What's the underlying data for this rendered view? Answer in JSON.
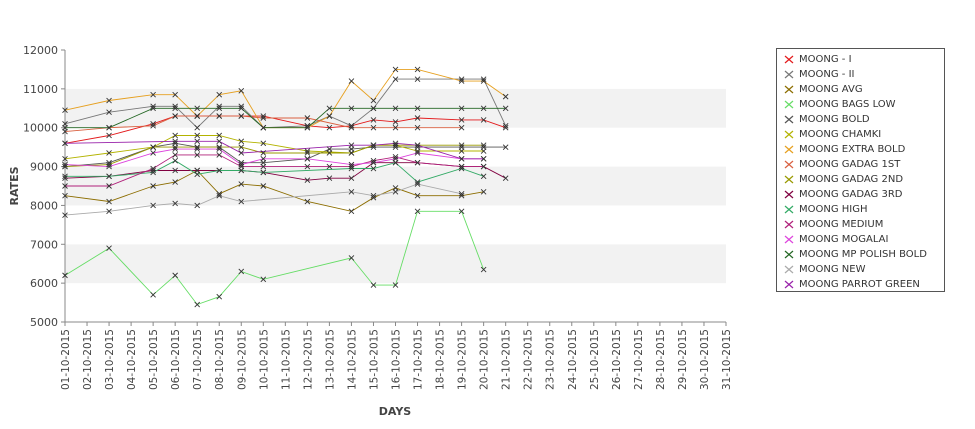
{
  "chart_data": {
    "type": "line",
    "title": "",
    "xlabel": "DAYS",
    "ylabel": "RATES",
    "ylim": [
      5000,
      12000
    ],
    "yticks": [
      5000,
      6000,
      7000,
      8000,
      9000,
      10000,
      11000,
      12000
    ],
    "grid": "alternating horizontal bands",
    "legend_position": "right",
    "categories": [
      "01-10-2015",
      "02-10-2015",
      "03-10-2015",
      "04-10-2015",
      "05-10-2015",
      "06-10-2015",
      "07-10-2015",
      "08-10-2015",
      "09-10-2015",
      "10-10-2015",
      "11-10-2015",
      "12-10-2015",
      "13-10-2015",
      "14-10-2015",
      "15-10-2015",
      "16-10-2015",
      "17-10-2015",
      "18-10-2015",
      "19-10-2015",
      "20-10-2015",
      "21-10-2015",
      "22-10-2015",
      "23-10-2015",
      "24-10-2015",
      "25-10-2015",
      "26-10-2015",
      "27-10-2015",
      "28-10-2015",
      "29-10-2015",
      "30-10-2015",
      "31-10-2015"
    ],
    "series": [
      {
        "name": "MOONG - I",
        "color": "#e31a1c",
        "points": [
          [
            "01-10-2015",
            9600
          ],
          [
            "03-10-2015",
            9800
          ],
          [
            "05-10-2015",
            10100
          ],
          [
            "06-10-2015",
            10300
          ],
          [
            "07-10-2015",
            10300
          ],
          [
            "08-10-2015",
            10300
          ],
          [
            "09-10-2015",
            10300
          ],
          [
            "10-10-2015",
            10300
          ],
          [
            "12-10-2015",
            10050
          ],
          [
            "13-10-2015",
            10000
          ],
          [
            "14-10-2015",
            10050
          ],
          [
            "15-10-2015",
            10200
          ],
          [
            "16-10-2015",
            10150
          ],
          [
            "17-10-2015",
            10250
          ],
          [
            "19-10-2015",
            10200
          ],
          [
            "20-10-2015",
            10200
          ],
          [
            "21-10-2015",
            10000
          ]
        ]
      },
      {
        "name": "MOONG - II",
        "color": "#777777",
        "points": [
          [
            "01-10-2015",
            10100
          ],
          [
            "03-10-2015",
            10400
          ],
          [
            "05-10-2015",
            10550
          ],
          [
            "06-10-2015",
            10550
          ],
          [
            "07-10-2015",
            10000
          ],
          [
            "08-10-2015",
            10550
          ],
          [
            "09-10-2015",
            10550
          ],
          [
            "10-10-2015",
            10000
          ],
          [
            "12-10-2015",
            10050
          ],
          [
            "13-10-2015",
            10300
          ],
          [
            "14-10-2015",
            10050
          ],
          [
            "15-10-2015",
            10500
          ],
          [
            "16-10-2015",
            11250
          ],
          [
            "17-10-2015",
            11250
          ],
          [
            "19-10-2015",
            11250
          ],
          [
            "20-10-2015",
            11250
          ],
          [
            "21-10-2015",
            10050
          ]
        ]
      },
      {
        "name": "MOONG AVG",
        "color": "#8c6d00",
        "points": [
          [
            "01-10-2015",
            8250
          ],
          [
            "03-10-2015",
            8100
          ],
          [
            "05-10-2015",
            8500
          ],
          [
            "06-10-2015",
            8600
          ],
          [
            "07-10-2015",
            8900
          ],
          [
            "08-10-2015",
            8300
          ],
          [
            "09-10-2015",
            8550
          ],
          [
            "10-10-2015",
            8500
          ],
          [
            "12-10-2015",
            8100
          ],
          [
            "14-10-2015",
            7850
          ],
          [
            "15-10-2015",
            8200
          ],
          [
            "16-10-2015",
            8450
          ],
          [
            "17-10-2015",
            8250
          ],
          [
            "19-10-2015",
            8250
          ],
          [
            "20-10-2015",
            8350
          ]
        ]
      },
      {
        "name": "MOONG BAGS LOW",
        "color": "#66dd66",
        "points": [
          [
            "01-10-2015",
            6200
          ],
          [
            "03-10-2015",
            6900
          ],
          [
            "05-10-2015",
            5700
          ],
          [
            "06-10-2015",
            6200
          ],
          [
            "07-10-2015",
            5450
          ],
          [
            "08-10-2015",
            5650
          ],
          [
            "09-10-2015",
            6300
          ],
          [
            "10-10-2015",
            6100
          ],
          [
            "14-10-2015",
            6650
          ],
          [
            "15-10-2015",
            5950
          ],
          [
            "16-10-2015",
            5950
          ],
          [
            "17-10-2015",
            7850
          ],
          [
            "19-10-2015",
            7850
          ],
          [
            "20-10-2015",
            6350
          ]
        ]
      },
      {
        "name": "MOONG BOLD",
        "color": "#555555",
        "points": [
          [
            "01-10-2015",
            9000
          ],
          [
            "03-10-2015",
            9100
          ],
          [
            "05-10-2015",
            9500
          ],
          [
            "06-10-2015",
            9600
          ],
          [
            "07-10-2015",
            9500
          ],
          [
            "08-10-2015",
            9500
          ],
          [
            "09-10-2015",
            9100
          ],
          [
            "10-10-2015",
            9100
          ],
          [
            "12-10-2015",
            9200
          ],
          [
            "13-10-2015",
            9450
          ],
          [
            "14-10-2015",
            9450
          ],
          [
            "15-10-2015",
            9500
          ],
          [
            "16-10-2015",
            9500
          ],
          [
            "17-10-2015",
            9500
          ],
          [
            "19-10-2015",
            9500
          ],
          [
            "20-10-2015",
            9500
          ],
          [
            "21-10-2015",
            9500
          ]
        ]
      },
      {
        "name": "MOONG CHAMKI",
        "color": "#b3b300",
        "points": [
          [
            "01-10-2015",
            9200
          ],
          [
            "03-10-2015",
            9350
          ],
          [
            "05-10-2015",
            9500
          ],
          [
            "06-10-2015",
            9800
          ],
          [
            "07-10-2015",
            9800
          ],
          [
            "08-10-2015",
            9800
          ],
          [
            "09-10-2015",
            9650
          ],
          [
            "10-10-2015",
            9600
          ],
          [
            "12-10-2015",
            9400
          ],
          [
            "14-10-2015",
            9350
          ],
          [
            "15-10-2015",
            9550
          ],
          [
            "16-10-2015",
            9550
          ],
          [
            "17-10-2015",
            9400
          ],
          [
            "19-10-2015",
            9400
          ],
          [
            "20-10-2015",
            9400
          ]
        ]
      },
      {
        "name": "MOONG EXTRA BOLD",
        "color": "#e6a020",
        "points": [
          [
            "01-10-2015",
            10450
          ],
          [
            "03-10-2015",
            10700
          ],
          [
            "05-10-2015",
            10850
          ],
          [
            "06-10-2015",
            10850
          ],
          [
            "07-10-2015",
            10300
          ],
          [
            "08-10-2015",
            10850
          ],
          [
            "09-10-2015",
            10950
          ],
          [
            "10-10-2015",
            10000
          ],
          [
            "12-10-2015",
            10000
          ],
          [
            "13-10-2015",
            10300
          ],
          [
            "14-10-2015",
            11200
          ],
          [
            "15-10-2015",
            10700
          ],
          [
            "16-10-2015",
            11500
          ],
          [
            "17-10-2015",
            11500
          ],
          [
            "19-10-2015",
            11200
          ],
          [
            "20-10-2015",
            11200
          ],
          [
            "21-10-2015",
            10800
          ]
        ]
      },
      {
        "name": "MOONG GADAG 1ST",
        "color": "#d96040",
        "points": [
          [
            "01-10-2015",
            9900
          ],
          [
            "03-10-2015",
            10000
          ],
          [
            "05-10-2015",
            10050
          ],
          [
            "06-10-2015",
            10300
          ],
          [
            "07-10-2015",
            10300
          ],
          [
            "08-10-2015",
            10300
          ],
          [
            "09-10-2015",
            10300
          ],
          [
            "10-10-2015",
            10250
          ],
          [
            "12-10-2015",
            10250
          ],
          [
            "14-10-2015",
            10000
          ],
          [
            "15-10-2015",
            10000
          ],
          [
            "16-10-2015",
            10000
          ],
          [
            "17-10-2015",
            10000
          ],
          [
            "19-10-2015",
            10000
          ]
        ]
      },
      {
        "name": "MOONG GADAG 2ND",
        "color": "#999900",
        "points": [
          [
            "01-10-2015",
            9000
          ],
          [
            "03-10-2015",
            9050
          ],
          [
            "05-10-2015",
            9500
          ],
          [
            "06-10-2015",
            9500
          ],
          [
            "07-10-2015",
            9500
          ],
          [
            "08-10-2015",
            9500
          ],
          [
            "09-10-2015",
            9500
          ],
          [
            "10-10-2015",
            9350
          ],
          [
            "12-10-2015",
            9350
          ],
          [
            "13-10-2015",
            9350
          ],
          [
            "14-10-2015",
            9350
          ],
          [
            "15-10-2015",
            9550
          ],
          [
            "16-10-2015",
            9550
          ],
          [
            "17-10-2015",
            9550
          ],
          [
            "19-10-2015",
            9550
          ],
          [
            "20-10-2015",
            9550
          ]
        ]
      },
      {
        "name": "MOONG GADAG 3RD",
        "color": "#800040",
        "points": [
          [
            "01-10-2015",
            8700
          ],
          [
            "03-10-2015",
            8750
          ],
          [
            "05-10-2015",
            8900
          ],
          [
            "06-10-2015",
            8900
          ],
          [
            "07-10-2015",
            8900
          ],
          [
            "08-10-2015",
            8900
          ],
          [
            "09-10-2015",
            8900
          ],
          [
            "10-10-2015",
            8850
          ],
          [
            "12-10-2015",
            8650
          ],
          [
            "13-10-2015",
            8700
          ],
          [
            "14-10-2015",
            8700
          ],
          [
            "15-10-2015",
            9100
          ],
          [
            "16-10-2015",
            9100
          ],
          [
            "17-10-2015",
            9100
          ],
          [
            "19-10-2015",
            9000
          ],
          [
            "20-10-2015",
            9000
          ],
          [
            "21-10-2015",
            8700
          ]
        ]
      },
      {
        "name": "MOONG HIGH",
        "color": "#33aa66",
        "points": [
          [
            "01-10-2015",
            8750
          ],
          [
            "03-10-2015",
            8750
          ],
          [
            "05-10-2015",
            8850
          ],
          [
            "06-10-2015",
            9150
          ],
          [
            "07-10-2015",
            8800
          ],
          [
            "08-10-2015",
            8900
          ],
          [
            "09-10-2015",
            8900
          ],
          [
            "10-10-2015",
            8850
          ],
          [
            "14-10-2015",
            8950
          ],
          [
            "15-10-2015",
            8950
          ],
          [
            "16-10-2015",
            9100
          ],
          [
            "17-10-2015",
            8600
          ],
          [
            "19-10-2015",
            8950
          ],
          [
            "20-10-2015",
            8750
          ]
        ]
      },
      {
        "name": "MOONG MEDIUM",
        "color": "#b0207a",
        "points": [
          [
            "01-10-2015",
            8500
          ],
          [
            "03-10-2015",
            8500
          ],
          [
            "05-10-2015",
            8950
          ],
          [
            "06-10-2015",
            9300
          ],
          [
            "07-10-2015",
            9300
          ],
          [
            "08-10-2015",
            9300
          ],
          [
            "09-10-2015",
            9000
          ],
          [
            "10-10-2015",
            9000
          ],
          [
            "12-10-2015",
            9000
          ],
          [
            "13-10-2015",
            9000
          ],
          [
            "14-10-2015",
            9000
          ],
          [
            "15-10-2015",
            9150
          ],
          [
            "16-10-2015",
            9250
          ],
          [
            "17-10-2015",
            9100
          ],
          [
            "19-10-2015",
            9000
          ],
          [
            "20-10-2015",
            9000
          ]
        ]
      },
      {
        "name": "MOONG MOGALAI",
        "color": "#dd44dd",
        "points": [
          [
            "01-10-2015",
            9050
          ],
          [
            "03-10-2015",
            9000
          ],
          [
            "05-10-2015",
            9350
          ],
          [
            "06-10-2015",
            9450
          ],
          [
            "07-10-2015",
            9450
          ],
          [
            "08-10-2015",
            9450
          ],
          [
            "09-10-2015",
            9050
          ],
          [
            "10-10-2015",
            9200
          ],
          [
            "12-10-2015",
            9200
          ],
          [
            "14-10-2015",
            9050
          ],
          [
            "15-10-2015",
            9100
          ],
          [
            "16-10-2015",
            9200
          ],
          [
            "17-10-2015",
            9350
          ],
          [
            "19-10-2015",
            9200
          ],
          [
            "20-10-2015",
            9200
          ]
        ]
      },
      {
        "name": "MOONG MP POLISH BOLD",
        "color": "#226622",
        "points": [
          [
            "01-10-2015",
            10000
          ],
          [
            "03-10-2015",
            10000
          ],
          [
            "05-10-2015",
            10500
          ],
          [
            "06-10-2015",
            10500
          ],
          [
            "07-10-2015",
            10500
          ],
          [
            "08-10-2015",
            10500
          ],
          [
            "09-10-2015",
            10500
          ],
          [
            "10-10-2015",
            10000
          ],
          [
            "12-10-2015",
            10000
          ],
          [
            "13-10-2015",
            10500
          ],
          [
            "14-10-2015",
            10500
          ],
          [
            "15-10-2015",
            10500
          ],
          [
            "16-10-2015",
            10500
          ],
          [
            "17-10-2015",
            10500
          ],
          [
            "19-10-2015",
            10500
          ],
          [
            "20-10-2015",
            10500
          ],
          [
            "21-10-2015",
            10500
          ]
        ]
      },
      {
        "name": "MOONG NEW",
        "color": "#aaaaaa",
        "points": [
          [
            "01-10-2015",
            7750
          ],
          [
            "03-10-2015",
            7850
          ],
          [
            "05-10-2015",
            8000
          ],
          [
            "06-10-2015",
            8050
          ],
          [
            "07-10-2015",
            8000
          ],
          [
            "08-10-2015",
            8250
          ],
          [
            "09-10-2015",
            8100
          ],
          [
            "14-10-2015",
            8350
          ],
          [
            "15-10-2015",
            8250
          ],
          [
            "16-10-2015",
            8350
          ],
          [
            "17-10-2015",
            8550
          ],
          [
            "19-10-2015",
            8300
          ]
        ]
      },
      {
        "name": "MOONG PARROT GREEN",
        "color": "#9922aa",
        "points": [
          [
            "01-10-2015",
            9600
          ],
          [
            "06-10-2015",
            9650
          ],
          [
            "07-10-2015",
            9650
          ],
          [
            "08-10-2015",
            9650
          ],
          [
            "09-10-2015",
            9350
          ],
          [
            "14-10-2015",
            9550
          ],
          [
            "15-10-2015",
            9550
          ],
          [
            "16-10-2015",
            9600
          ],
          [
            "17-10-2015",
            9550
          ],
          [
            "19-10-2015",
            9200
          ],
          [
            "20-10-2015",
            9200
          ]
        ]
      }
    ]
  }
}
